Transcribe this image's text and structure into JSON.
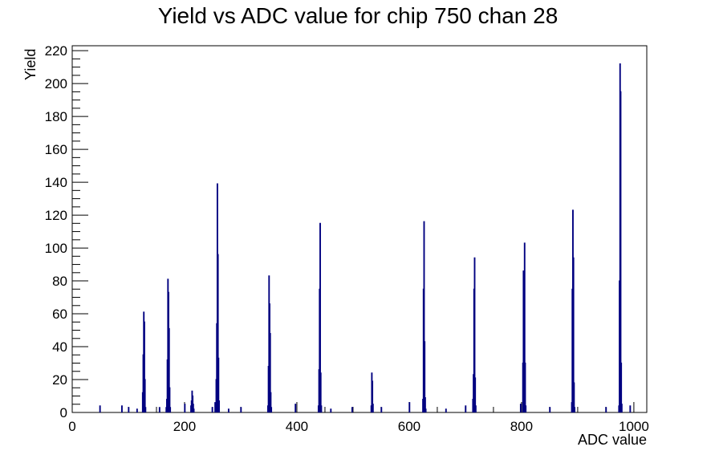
{
  "chart_data": {
    "type": "bar",
    "title": "Yield vs ADC value for chip 750 chan 28",
    "xlabel": "ADC value",
    "ylabel": "Yield",
    "xlim": [
      0,
      1023
    ],
    "ylim": [
      0,
      223
    ],
    "x_ticks": [
      0,
      200,
      400,
      600,
      800,
      1000
    ],
    "y_ticks": [
      0,
      20,
      40,
      60,
      80,
      100,
      120,
      140,
      160,
      180,
      200,
      220
    ],
    "grid": false,
    "line_color": "#000080",
    "series": [
      {
        "bins": [
          [
            49,
            4
          ],
          [
            88,
            4
          ],
          [
            100,
            3
          ],
          [
            115,
            2
          ],
          [
            125,
            12
          ],
          [
            126,
            35
          ],
          [
            127,
            61
          ],
          [
            128,
            55
          ],
          [
            129,
            20
          ],
          [
            130,
            3
          ],
          [
            155,
            3
          ],
          [
            167,
            3
          ],
          [
            168,
            8
          ],
          [
            169,
            32
          ],
          [
            170,
            81
          ],
          [
            171,
            73
          ],
          [
            172,
            51
          ],
          [
            173,
            15
          ],
          [
            174,
            3
          ],
          [
            200,
            5
          ],
          [
            211,
            4
          ],
          [
            212,
            7
          ],
          [
            213,
            13
          ],
          [
            214,
            10
          ],
          [
            215,
            5
          ],
          [
            216,
            2
          ],
          [
            249,
            3
          ],
          [
            254,
            6
          ],
          [
            256,
            20
          ],
          [
            257,
            54
          ],
          [
            258,
            139
          ],
          [
            259,
            96
          ],
          [
            260,
            33
          ],
          [
            261,
            7
          ],
          [
            278,
            2
          ],
          [
            300,
            3
          ],
          [
            348,
            4
          ],
          [
            349,
            28
          ],
          [
            350,
            83
          ],
          [
            351,
            66
          ],
          [
            352,
            48
          ],
          [
            353,
            12
          ],
          [
            354,
            3
          ],
          [
            397,
            5
          ],
          [
            438,
            4
          ],
          [
            439,
            26
          ],
          [
            440,
            75
          ],
          [
            441,
            115
          ],
          [
            442,
            24
          ],
          [
            443,
            4
          ],
          [
            460,
            2
          ],
          [
            498,
            3
          ],
          [
            532,
            4
          ],
          [
            533,
            24
          ],
          [
            534,
            19
          ],
          [
            535,
            5
          ],
          [
            550,
            3
          ],
          [
            600,
            6
          ],
          [
            624,
            8
          ],
          [
            625,
            75
          ],
          [
            626,
            116
          ],
          [
            627,
            43
          ],
          [
            628,
            9
          ],
          [
            629,
            2
          ],
          [
            665,
            2
          ],
          [
            700,
            4
          ],
          [
            713,
            8
          ],
          [
            714,
            23
          ],
          [
            715,
            75
          ],
          [
            716,
            94
          ],
          [
            717,
            21
          ],
          [
            718,
            4
          ],
          [
            798,
            5
          ],
          [
            802,
            30
          ],
          [
            803,
            86
          ],
          [
            804,
            68
          ],
          [
            805,
            103
          ],
          [
            806,
            30
          ],
          [
            807,
            4
          ],
          [
            850,
            3
          ],
          [
            889,
            6
          ],
          [
            890,
            75
          ],
          [
            891,
            123
          ],
          [
            892,
            94
          ],
          [
            893,
            18
          ],
          [
            894,
            3
          ],
          [
            950,
            3
          ],
          [
            973,
            4
          ],
          [
            974,
            80
          ],
          [
            975,
            212
          ],
          [
            976,
            195
          ],
          [
            977,
            30
          ],
          [
            978,
            5
          ],
          [
            993,
            4
          ]
        ]
      }
    ]
  }
}
